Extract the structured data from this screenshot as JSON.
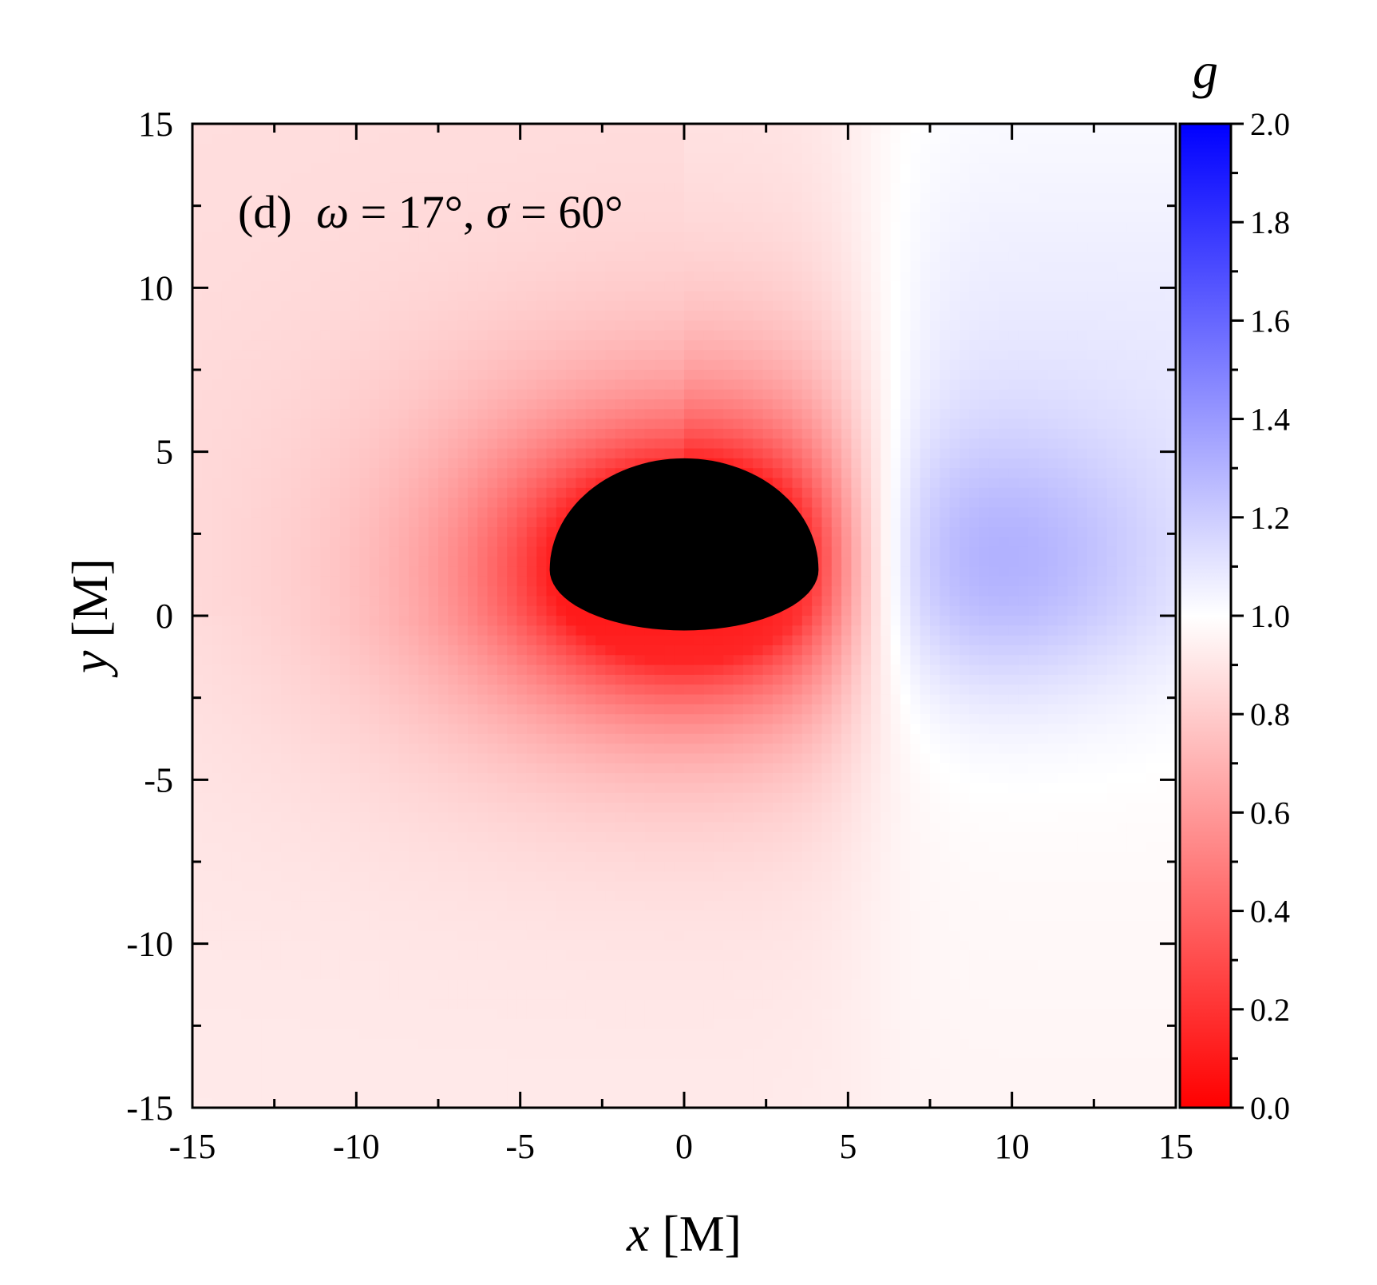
{
  "chart_data": {
    "type": "heatmap",
    "panel_label": "(d)",
    "annotation": {
      "omega_symbol": "ω",
      "omega_value": " = 17°, ",
      "sigma_symbol": "σ",
      "sigma_value": " = 60°"
    },
    "xlabel": {
      "symbol": "x",
      "unit": " [M]"
    },
    "ylabel": {
      "symbol": "y",
      "unit": " [M]"
    },
    "xlim": [
      -15,
      15
    ],
    "ylim": [
      -15,
      15
    ],
    "xticks": [
      "-15",
      "-10",
      "-5",
      "0",
      "5",
      "10",
      "15"
    ],
    "yticks": [
      "-15",
      "-10",
      "-5",
      "0",
      "5",
      "10",
      "15"
    ],
    "colorbar": {
      "title": "g",
      "range": [
        0.0,
        2.0
      ],
      "ticks": [
        "0.0",
        "0.2",
        "0.4",
        "0.6",
        "0.8",
        "1.0",
        "1.2",
        "1.4",
        "1.6",
        "1.8",
        "2.0"
      ],
      "colormap": [
        {
          "value": 0.0,
          "color": "#ff0000"
        },
        {
          "value": 1.0,
          "color": "#ffffff"
        },
        {
          "value": 2.0,
          "color": "#0000ff"
        }
      ]
    },
    "shadow": {
      "color": "#000000",
      "x_range": [
        -4.1,
        4.1
      ],
      "y_range": [
        -0.45,
        4.8
      ]
    },
    "field": {
      "min_g": 0.0,
      "max_g": 1.28,
      "blue_lobe_center": [
        9.5,
        1.5
      ],
      "red_peak_near_shadow": true
    }
  }
}
